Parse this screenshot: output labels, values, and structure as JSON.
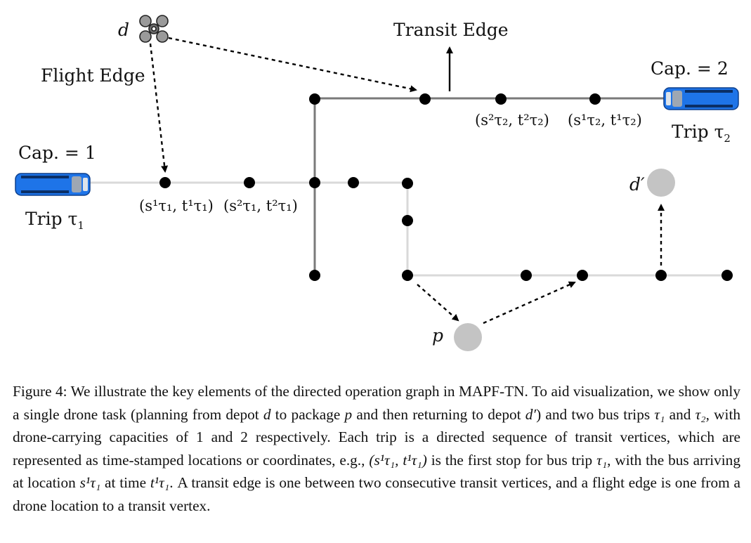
{
  "figure": {
    "labels": {
      "drone": "d",
      "flight_edge": "Flight Edge",
      "transit_edge": "Transit Edge",
      "cap_1": "Cap. = 1",
      "cap_2": "Cap. = 2",
      "trip_1": "Trip τ",
      "trip_1_sub": "1",
      "trip_2": "Trip τ",
      "trip_2_sub": "2",
      "depot_return": "d′",
      "package": "p",
      "v_s1_t1": "(s¹τ₁, t¹τ₁)",
      "v_s2_t1": "(s²τ₁, t²τ₁)",
      "v_s2_t2": "(s²τ₂, t²τ₂)",
      "v_s1_t2": "(s¹τ₂, t¹τ₂)"
    },
    "colors": {
      "bus": "#1e74e8",
      "route_trip1": "#d9d9d9",
      "route_trip2": "#7a7a7a",
      "node": "#000000",
      "endpoint": "#c4c4c4"
    }
  },
  "caption": {
    "p1": "Figure 4: We illustrate the key elements of the directed operation graph in MAPF-TN. To aid visualization, we show only a single drone task (planning from depot ",
    "d": "d",
    "p2": " to package ",
    "p": "p",
    "p3": " and then returning to depot ",
    "dprime": "d′",
    "p4": ") and two bus trips ",
    "tau1": "τ₁",
    "p5": " and ",
    "tau2": "τ₂",
    "p6": ", with drone-carrying capacities of 1 and 2 respectively. Each trip is a directed sequence of transit vertices, which are represented as time-stamped locations or coordinates, e.g., ",
    "example_vertex": "(s¹τ₁, t¹τ₁)",
    "p7": " is the first stop for bus trip ",
    "tau1b": "τ₁",
    "p8": ", with the bus arriving at location ",
    "s1": "s¹τ₁",
    "p9": " at time ",
    "t1": "t¹τ₁",
    "p10": ". A transit edge is one between two consecutive transit vertices, and a flight edge is one from a drone location to a transit vertex."
  }
}
